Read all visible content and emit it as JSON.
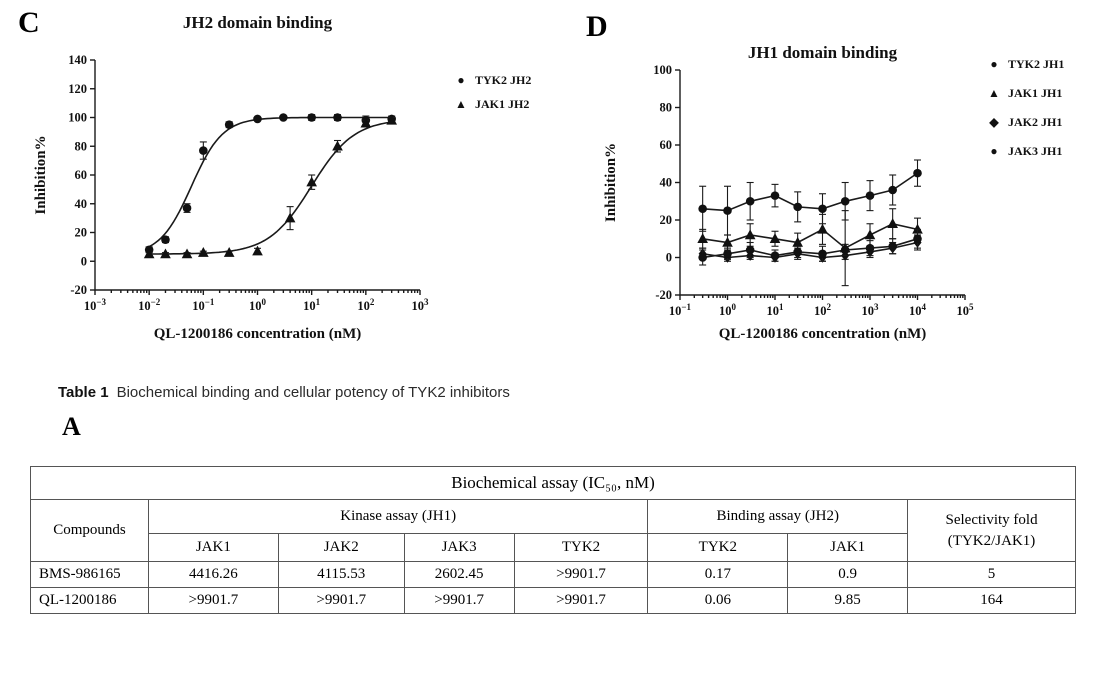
{
  "panels": {
    "a": "A",
    "c": "C",
    "d": "D"
  },
  "caption": {
    "label": "Table 1",
    "text": "Biochemical binding and cellular potency of TYK2 inhibitors"
  },
  "chart_data": [
    {
      "id": "jh2",
      "type": "line",
      "title": "JH2 domain binding",
      "xlabel": "QL-1200186 concentration (nM)",
      "ylabel": "Inhibition%",
      "xscale": "log",
      "xlim_exp": [
        -3,
        3
      ],
      "ylim": [
        -20,
        140
      ],
      "yticks": [
        -20,
        0,
        20,
        40,
        60,
        80,
        100,
        120,
        140
      ],
      "legend_position": "right",
      "grid": false,
      "series": [
        {
          "name": "TYK2 JH2",
          "marker": "circle",
          "glyph": "●",
          "x": [
            0.01,
            0.02,
            0.05,
            0.1,
            0.3,
            1,
            3,
            10,
            30,
            100,
            300
          ],
          "y": [
            8,
            15,
            37,
            77,
            95,
            99,
            100,
            100,
            100,
            98,
            99
          ],
          "err": [
            2,
            2,
            3,
            6,
            2,
            1,
            1,
            2,
            2,
            3,
            2
          ],
          "fit": {
            "bottom": 4,
            "top": 100,
            "ic50": 0.06,
            "hill": 1.5
          }
        },
        {
          "name": "JAK1 JH2",
          "marker": "triangle",
          "glyph": "▲",
          "x": [
            0.01,
            0.02,
            0.05,
            0.1,
            0.3,
            1,
            4,
            10,
            30,
            100,
            300
          ],
          "y": [
            5,
            5,
            5,
            6,
            6,
            7,
            30,
            55,
            80,
            96,
            98
          ],
          "err": [
            1,
            1,
            1,
            1,
            1,
            2,
            8,
            5,
            4,
            2,
            2
          ],
          "fit": {
            "bottom": 5,
            "top": 99,
            "ic50": 9.85,
            "hill": 1.1
          }
        }
      ]
    },
    {
      "id": "jh1",
      "type": "line",
      "title": "JH1 domain binding",
      "xlabel": "QL-1200186 concentration (nM)",
      "ylabel": "Inhibition%",
      "xscale": "log",
      "xlim_exp": [
        -1,
        5
      ],
      "ylim": [
        -20,
        100
      ],
      "yticks": [
        -20,
        0,
        20,
        40,
        60,
        80,
        100
      ],
      "legend_position": "right",
      "grid": false,
      "series": [
        {
          "name": "TYK2 JH1",
          "marker": "circle",
          "glyph": "●",
          "x": [
            0.3,
            1,
            3,
            10,
            30,
            100,
            300,
            1000,
            3000,
            10000
          ],
          "y": [
            26,
            25,
            30,
            33,
            27,
            26,
            30,
            33,
            36,
            45
          ],
          "err": [
            12,
            13,
            10,
            6,
            8,
            8,
            10,
            8,
            8,
            7
          ]
        },
        {
          "name": "JAK1 JH1",
          "marker": "triangle",
          "glyph": "▲",
          "x": [
            0.3,
            1,
            3,
            10,
            30,
            100,
            300,
            1000,
            3000,
            10000
          ],
          "y": [
            10,
            8,
            12,
            10,
            8,
            15,
            5,
            12,
            18,
            15
          ],
          "err": [
            5,
            4,
            6,
            4,
            5,
            8,
            20,
            6,
            8,
            6
          ]
        },
        {
          "name": "JAK2 JH1",
          "marker": "diamond",
          "glyph": "◆",
          "x": [
            0.3,
            1,
            3,
            10,
            30,
            100,
            300,
            1000,
            3000,
            10000
          ],
          "y": [
            2,
            0,
            1,
            0,
            2,
            0,
            1,
            3,
            5,
            8
          ],
          "err": [
            3,
            2,
            2,
            2,
            3,
            2,
            2,
            3,
            3,
            4
          ]
        },
        {
          "name": "JAK3 JH1",
          "marker": "circle",
          "glyph": "●",
          "x": [
            0.3,
            1,
            3,
            10,
            30,
            100,
            300,
            1000,
            3000,
            10000
          ],
          "y": [
            0,
            2,
            4,
            1,
            3,
            2,
            4,
            5,
            6,
            10
          ],
          "err": [
            4,
            3,
            4,
            3,
            3,
            4,
            3,
            4,
            4,
            5
          ]
        }
      ]
    },
    {
      "type": "table",
      "title": "Biochemical assay (IC₅₀, nM)",
      "columns": [
        "Compounds",
        "JAK1 (JH1)",
        "JAK2 (JH1)",
        "JAK3 (JH1)",
        "TYK2 (JH1)",
        "TYK2 (JH2)",
        "JAK1 (JH2)",
        "Selectivity fold (TYK2/JAK1)"
      ],
      "rows": [
        [
          "BMS-986165",
          "4416.26",
          "4115.53",
          "2602.45",
          ">9901.7",
          "0.17",
          "0.9",
          "5"
        ],
        [
          "QL-1200186",
          ">9901.7",
          ">9901.7",
          ">9901.7",
          ">9901.7",
          "0.06",
          "9.85",
          "164"
        ]
      ]
    }
  ],
  "table": {
    "assay_header": "Biochemical assay (IC₅₀, nM)",
    "compounds_header": "Compounds",
    "kinase_header": "Kinase assay (JH1)",
    "binding_header": "Binding assay (JH2)",
    "selectivity_line1": "Selectivity fold",
    "selectivity_line2": "(TYK2/JAK1)",
    "sub_headers": [
      "JAK1",
      "JAK2",
      "JAK3",
      "TYK2",
      "TYK2",
      "JAK1"
    ],
    "rows": [
      {
        "compound": "BMS-986165",
        "values": [
          "4416.26",
          "4115.53",
          "2602.45",
          ">9901.7",
          "0.17",
          "0.9",
          "5"
        ]
      },
      {
        "compound": "QL-1200186",
        "values": [
          ">9901.7",
          ">9901.7",
          ">9901.7",
          ">9901.7",
          "0.06",
          "9.85",
          "164"
        ]
      }
    ]
  }
}
